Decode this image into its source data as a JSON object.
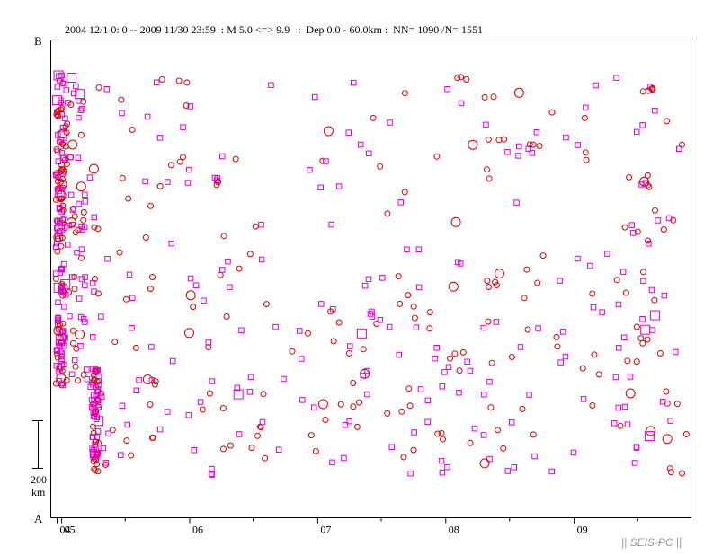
{
  "header": {
    "title": "2004 12/1 0: 0 -- 2009 11/30 23:59  : M 5.0 <=> 9.9   :  Dep 0.0 - 60.0km :  NN= 1090 /N= 1551"
  },
  "footer": {
    "credit": "|| SEIS-PC ||"
  },
  "chart_data": {
    "type": "scatter",
    "title": "2004 12/1 0: 0 -- 2009 11/30 23:59  : M 5.0 <=> 9.9   :  Dep 0.0 - 60.0km :  NN= 1090 /N= 1551",
    "xlabel": "",
    "ylabel": "",
    "x_axis": {
      "unit": "year",
      "range": [
        "2004-12-01",
        "2009-11-30"
      ],
      "tick_labels": [
        "04",
        "05",
        "06",
        "07",
        "08",
        "09"
      ]
    },
    "y_axis": {
      "top_label": "B",
      "bottom_label": "A",
      "scale_bar": {
        "value": "200",
        "unit": "km"
      }
    },
    "grid": false,
    "legend": "none",
    "series": [
      {
        "marker": "square",
        "color": "#e000e0"
      },
      {
        "marker": "circle",
        "color": "#e00000"
      }
    ],
    "n_total_label": "NN= 1090 /N= 1551",
    "colors": {
      "square": "#e000e0",
      "circle": "#e00000",
      "axis": "#000000",
      "credit": "#999999"
    }
  }
}
